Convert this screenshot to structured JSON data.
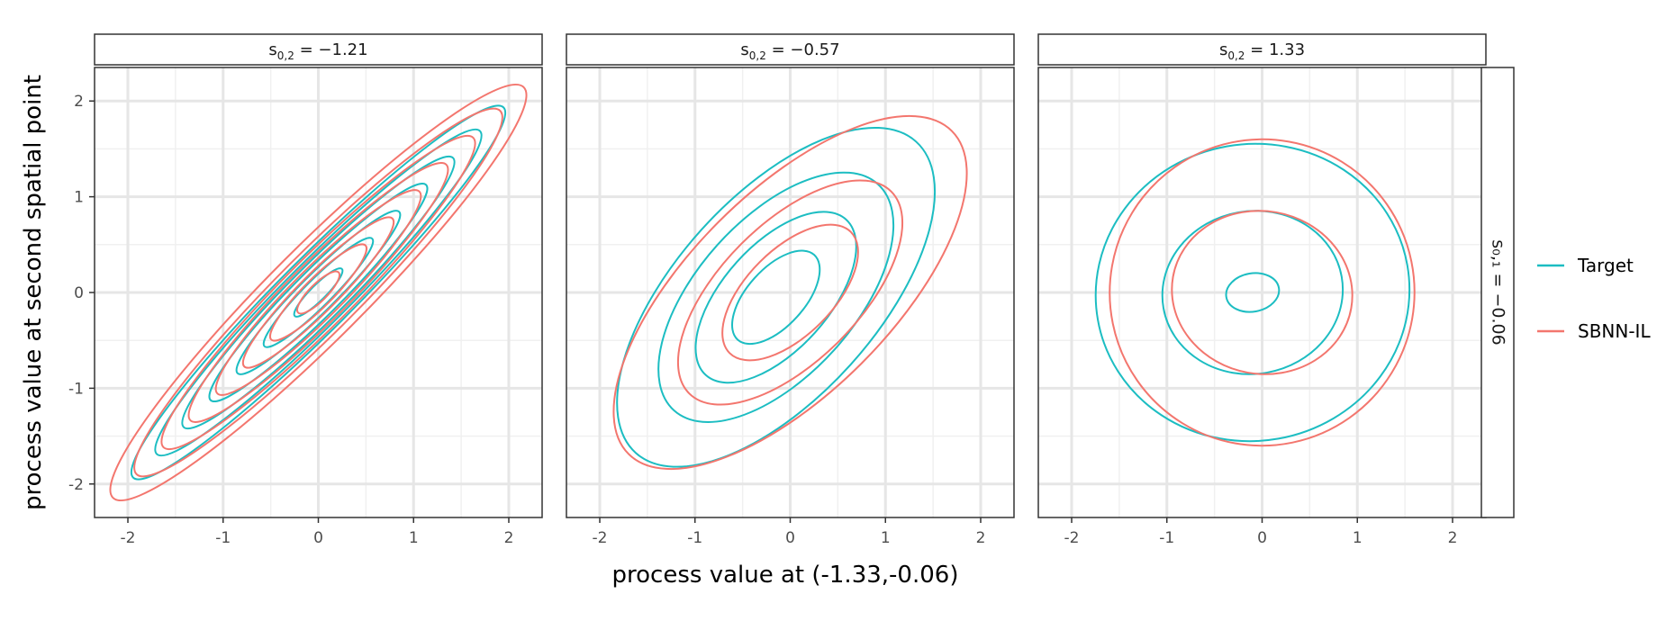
{
  "chart_data": {
    "type": "contour",
    "facet_row_label": "s₀,₁ = −0.06",
    "xlabel": "process value at (-1.33,-0.06)",
    "ylabel": "process value at second spatial point",
    "xlim": [
      -2.35,
      2.35
    ],
    "ylim": [
      -2.35,
      2.35
    ],
    "x_ticks": [
      -2,
      -1,
      0,
      1,
      2
    ],
    "y_ticks": [
      -2,
      -1,
      0,
      1,
      2
    ],
    "x_tick_labels": [
      "-2",
      "-1",
      "0",
      "1",
      "2"
    ],
    "y_tick_labels": [
      "-2",
      "-1",
      "0",
      "1",
      "2"
    ],
    "grid": true,
    "legend": {
      "position": "right",
      "entries": [
        {
          "label": "Target",
          "color": "#1cbdc2"
        },
        {
          "label": "SBNN-IL",
          "color": "#f3766e"
        }
      ]
    },
    "panels": [
      {
        "strip_prefix": "s",
        "strip_sub": "0,2",
        "strip_value": " = −1.21",
        "series": [
          {
            "name": "Target",
            "shape": "ellipse",
            "center": [
              0.0,
              0.0
            ],
            "angle_deg": 45,
            "semi_major": [
              0.35,
              0.8,
              1.2,
              1.6,
              2.0,
              2.4,
              2.75
            ],
            "semi_minor": [
              0.08,
              0.14,
              0.19,
              0.24,
              0.29,
              0.33,
              0.38
            ]
          },
          {
            "name": "SBNN-IL",
            "shape": "ellipse",
            "center": [
              0.0,
              0.0
            ],
            "angle_deg": 45,
            "semi_major": [
              0.3,
              0.7,
              1.1,
              1.5,
              1.9,
              2.3,
              2.7,
              3.05
            ],
            "semi_minor": [
              0.09,
              0.15,
              0.2,
              0.26,
              0.31,
              0.36,
              0.42,
              0.49
            ]
          }
        ]
      },
      {
        "strip_prefix": "s",
        "strip_sub": "0,2",
        "strip_value": " = −0.57",
        "series": [
          {
            "name": "Target",
            "shape": "ellipse",
            "center": [
              -0.15,
              -0.05
            ],
            "angle_deg": 48,
            "semi_major": [
              0.6,
              1.1,
              1.6,
              2.2
            ],
            "semi_minor": [
              0.3,
              0.55,
              0.82,
              1.05
            ]
          },
          {
            "name": "SBNN-IL",
            "shape": "ellipse",
            "center": [
              0.0,
              0.0
            ],
            "angle_deg": 45,
            "semi_major": [
              0.9,
              1.5,
              2.4
            ],
            "semi_minor": [
              0.45,
              0.72,
              1.05
            ]
          }
        ]
      },
      {
        "strip_prefix": "s",
        "strip_sub": "0,2",
        "strip_value": " = 1.33",
        "series": [
          {
            "name": "Target",
            "shape": "ellipse",
            "center": [
              -0.1,
              0.0
            ],
            "angle_deg": 10,
            "semi_major": [
              0.28,
              0.95,
              1.65
            ],
            "semi_minor": [
              0.2,
              0.85,
              1.55
            ]
          },
          {
            "name": "SBNN-IL",
            "shape": "ellipse",
            "center": [
              0.0,
              0.0
            ],
            "angle_deg": -10,
            "semi_major": [
              0.95,
              1.6
            ],
            "semi_minor": [
              0.85,
              1.6
            ]
          }
        ]
      }
    ]
  }
}
